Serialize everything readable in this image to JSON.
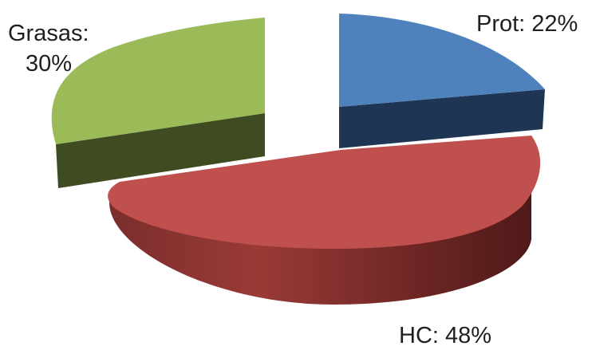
{
  "chart_data": {
    "type": "pie",
    "style": "3d-exploded",
    "title": "",
    "categories": [
      "Prot",
      "HC",
      "Grasas"
    ],
    "values": [
      22,
      48,
      30
    ],
    "unit": "%",
    "colors": {
      "Prot": "#4f81bd",
      "HC": "#c0504d",
      "Grasas": "#9bbb59"
    },
    "data_labels": {
      "prot": "Prot: 22%",
      "hc": "HC: 48%",
      "grasas_line1": "Grasas:",
      "grasas_line2": "30%"
    },
    "legend": "none"
  }
}
